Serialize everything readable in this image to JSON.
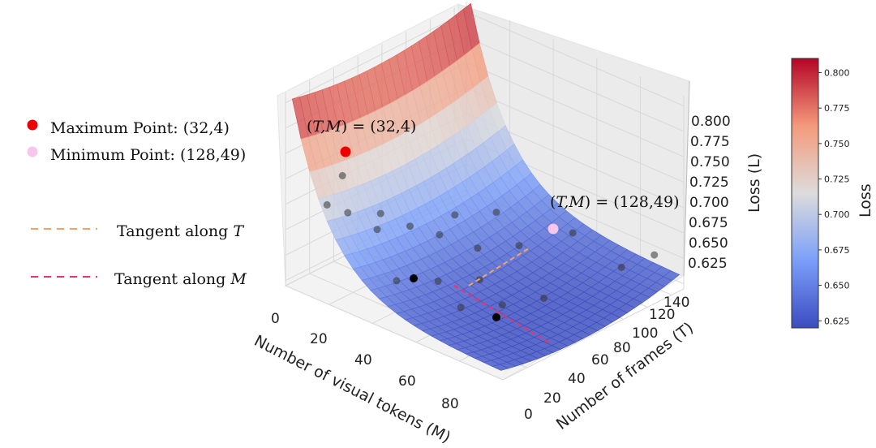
{
  "chart_data": {
    "type": "surface3d",
    "title": "",
    "xlabel": "Number of visual tokens (M)",
    "ylabel": "Number of frames (T)",
    "zlabel": "Loss (L)",
    "x_ticks": [
      "0",
      "20",
      "40",
      "60",
      "80"
    ],
    "y_ticks": [
      "0",
      "20",
      "40",
      "60",
      "80",
      "100",
      "120",
      "140"
    ],
    "z_ticks": [
      "0.625",
      "0.650",
      "0.675",
      "0.700",
      "0.725",
      "0.750",
      "0.775",
      "0.800"
    ],
    "xlim": [
      0,
      100
    ],
    "ylim": [
      0,
      150
    ],
    "zlim": [
      0.62,
      0.81
    ],
    "grid": true,
    "legend_position": "left",
    "legend": {
      "max_point": "Maximum Point: (32,4)",
      "min_point": "Minimum Point: (128,49)",
      "tangent_t_prefix": "Tangent along ",
      "tangent_t_var": "T",
      "tangent_m_prefix": "Tangent along ",
      "tangent_m_var": "M"
    },
    "annotations": {
      "max_label_prefix": "(",
      "max_label_vars": "T,M",
      "max_label_suffix": ") = (32,4)",
      "min_label_prefix": "(",
      "min_label_vars": "T,M",
      "min_label_suffix": ") = (128,49)"
    },
    "max_point": {
      "T": 32,
      "M": 4,
      "L": 0.74
    },
    "min_point": {
      "T": 128,
      "M": 49,
      "L": 0.655
    },
    "observations": [
      {
        "M": 4,
        "T": 40,
        "L": 0.708
      },
      {
        "M": 8,
        "T": 20,
        "L": 0.695
      },
      {
        "M": 12,
        "T": 30,
        "L": 0.685
      },
      {
        "M": 16,
        "T": 50,
        "L": 0.676
      },
      {
        "M": 20,
        "T": 40,
        "L": 0.67
      },
      {
        "M": 24,
        "T": 60,
        "L": 0.665
      },
      {
        "M": 28,
        "T": 90,
        "L": 0.662
      },
      {
        "M": 32,
        "T": 70,
        "L": 0.658
      },
      {
        "M": 36,
        "T": 110,
        "L": 0.66
      },
      {
        "M": 40,
        "T": 20,
        "L": 0.65
      },
      {
        "M": 44,
        "T": 80,
        "L": 0.65
      },
      {
        "M": 48,
        "T": 40,
        "L": 0.645
      },
      {
        "M": 52,
        "T": 100,
        "L": 0.648
      },
      {
        "M": 56,
        "T": 60,
        "L": 0.642
      },
      {
        "M": 60,
        "T": 130,
        "L": 0.65
      },
      {
        "M": 64,
        "T": 30,
        "L": 0.64
      },
      {
        "M": 72,
        "T": 50,
        "L": 0.638
      },
      {
        "M": 80,
        "T": 70,
        "L": 0.64
      },
      {
        "M": 88,
        "T": 120,
        "L": 0.648
      },
      {
        "M": 92,
        "T": 140,
        "L": 0.652
      }
    ],
    "colorbar": {
      "label": "Loss",
      "ticks": [
        "0.625",
        "0.650",
        "0.675",
        "0.700",
        "0.725",
        "0.750",
        "0.775",
        "0.800"
      ],
      "range": [
        0.62,
        0.81
      ],
      "cmap_low": "#3b4cc0",
      "cmap_mid": "#dddddd",
      "cmap_high": "#b40426"
    },
    "colors": {
      "max_point": "#ee0000",
      "min_point": "#f7c6ec",
      "tangent_t": "#f4a460",
      "tangent_m": "#e8336d",
      "observation": "#333333"
    }
  }
}
